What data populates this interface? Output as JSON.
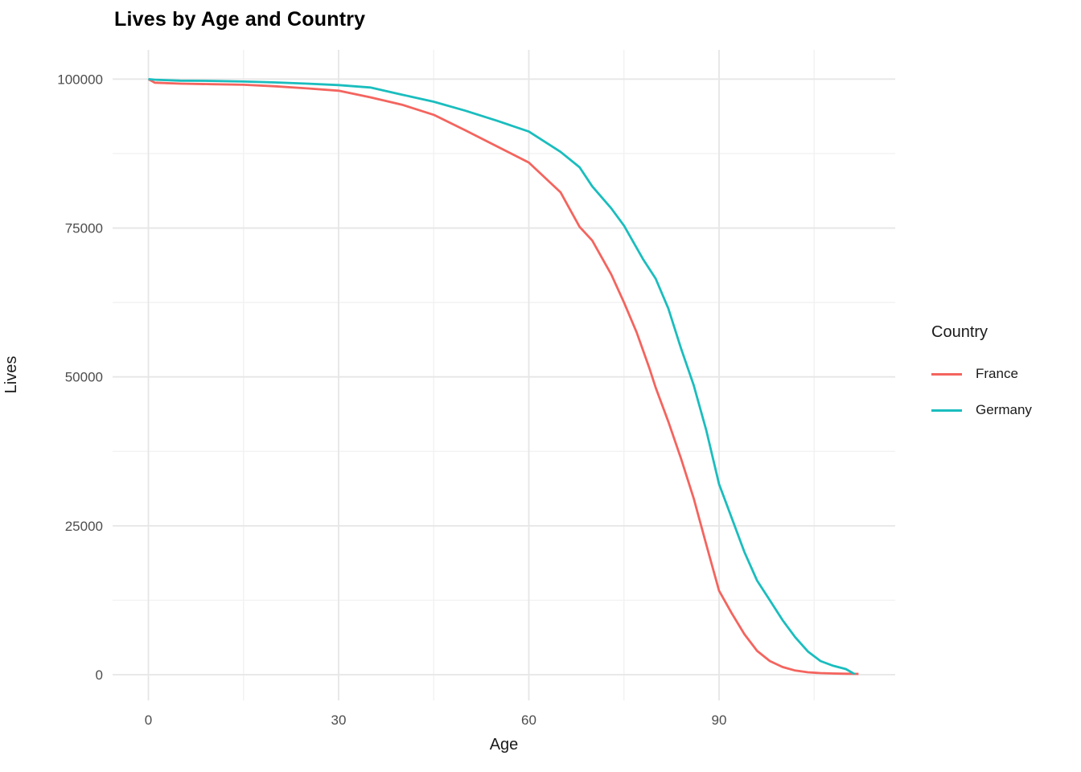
{
  "chart_data": {
    "type": "line",
    "title": "Lives by Age and Country",
    "xlabel": "Age",
    "ylabel": "Lives",
    "xlim": [
      0,
      112
    ],
    "ylim": [
      0,
      100000
    ],
    "x_ticks": [
      0,
      30,
      60,
      90
    ],
    "x_minor_ticks": [
      15,
      45,
      75,
      105
    ],
    "y_ticks": [
      0,
      25000,
      50000,
      75000,
      100000
    ],
    "y_minor_ticks": [
      12500,
      37500,
      62500,
      87500
    ],
    "grid": true,
    "legend_position": "right",
    "series": [
      {
        "name": "France",
        "color": "#F4645E",
        "points": [
          [
            0,
            100000
          ],
          [
            1,
            99400
          ],
          [
            5,
            99250
          ],
          [
            10,
            99150
          ],
          [
            15,
            99050
          ],
          [
            20,
            98800
          ],
          [
            25,
            98450
          ],
          [
            30,
            98050
          ],
          [
            35,
            96950
          ],
          [
            40,
            95700
          ],
          [
            45,
            94000
          ],
          [
            50,
            91400
          ],
          [
            55,
            88700
          ],
          [
            60,
            86000
          ],
          [
            65,
            81000
          ],
          [
            68,
            75200
          ],
          [
            70,
            72900
          ],
          [
            73,
            67200
          ],
          [
            75,
            62500
          ],
          [
            77,
            57500
          ],
          [
            79,
            51500
          ],
          [
            80,
            48200
          ],
          [
            82,
            42500
          ],
          [
            84,
            36300
          ],
          [
            86,
            29600
          ],
          [
            88,
            21800
          ],
          [
            90,
            14100
          ],
          [
            92,
            10300
          ],
          [
            94,
            6800
          ],
          [
            96,
            4000
          ],
          [
            98,
            2300
          ],
          [
            100,
            1300
          ],
          [
            102,
            700
          ],
          [
            104,
            400
          ],
          [
            106,
            270
          ],
          [
            108,
            200
          ],
          [
            110,
            160
          ],
          [
            112,
            130
          ]
        ]
      },
      {
        "name": "Germany",
        "color": "#1ABDBE",
        "points": [
          [
            0,
            100000
          ],
          [
            1,
            99900
          ],
          [
            5,
            99750
          ],
          [
            10,
            99700
          ],
          [
            15,
            99600
          ],
          [
            20,
            99450
          ],
          [
            25,
            99250
          ],
          [
            30,
            99000
          ],
          [
            35,
            98600
          ],
          [
            40,
            97400
          ],
          [
            45,
            96200
          ],
          [
            50,
            94700
          ],
          [
            55,
            93000
          ],
          [
            60,
            91200
          ],
          [
            65,
            87800
          ],
          [
            68,
            85200
          ],
          [
            70,
            82000
          ],
          [
            73,
            78300
          ],
          [
            75,
            75400
          ],
          [
            78,
            69800
          ],
          [
            80,
            66500
          ],
          [
            82,
            61500
          ],
          [
            84,
            54800
          ],
          [
            86,
            48600
          ],
          [
            88,
            41000
          ],
          [
            90,
            32000
          ],
          [
            92,
            26300
          ],
          [
            94,
            20600
          ],
          [
            96,
            15800
          ],
          [
            98,
            12500
          ],
          [
            100,
            9200
          ],
          [
            102,
            6300
          ],
          [
            104,
            3900
          ],
          [
            106,
            2300
          ],
          [
            108,
            1500
          ],
          [
            110,
            950
          ],
          [
            111.4,
            100
          ]
        ]
      }
    ]
  },
  "legend": {
    "title": "Country"
  },
  "colors": {
    "background": "#FFFFFF",
    "grid_major": "#E6E6E6",
    "grid_minor": "#F2F2F2",
    "tick_label": "#4D4D4D",
    "axis_title": "#1A1A1A",
    "title": "#000000"
  }
}
